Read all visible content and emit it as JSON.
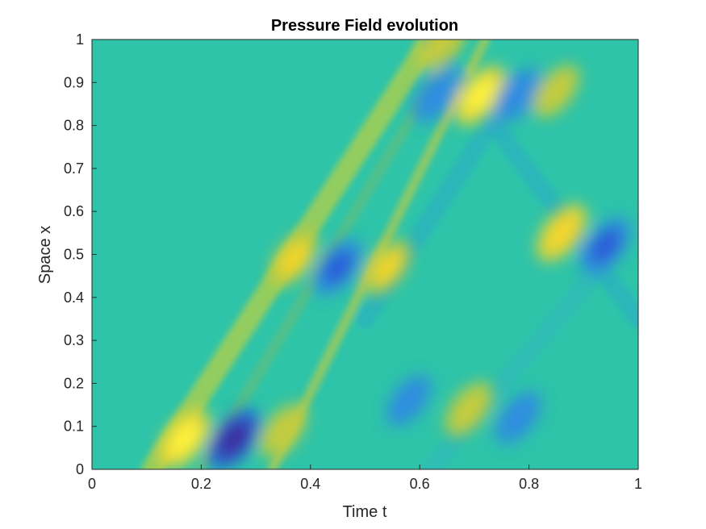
{
  "chart_data": {
    "type": "heatmap",
    "title": "Pressure Field evolution",
    "xlabel": "Time t",
    "ylabel": "Space x",
    "xlim": [
      0,
      1
    ],
    "ylim": [
      0,
      1
    ],
    "xticks": [
      "0",
      "0.2",
      "0.4",
      "0.6",
      "0.8",
      "1"
    ],
    "yticks": [
      "0",
      "0.1",
      "0.2",
      "0.3",
      "0.4",
      "0.5",
      "0.6",
      "0.7",
      "0.8",
      "0.9",
      "1"
    ],
    "grid": false,
    "colormap": "parula",
    "background_value_color": "#2ec4a9",
    "features": [
      {
        "kind": "positive",
        "t": 0.17,
        "x": 0.07,
        "intensity": 0.95
      },
      {
        "kind": "negative",
        "t": 0.26,
        "x": 0.07,
        "intensity": 1.0
      },
      {
        "kind": "positive",
        "t": 0.35,
        "x": 0.09,
        "intensity": 0.6
      },
      {
        "kind": "positive",
        "t": 0.37,
        "x": 0.49,
        "intensity": 0.65
      },
      {
        "kind": "negative",
        "t": 0.45,
        "x": 0.47,
        "intensity": 0.75
      },
      {
        "kind": "positive",
        "t": 0.54,
        "x": 0.47,
        "intensity": 0.65
      },
      {
        "kind": "negative",
        "t": 0.63,
        "x": 0.87,
        "intensity": 0.6
      },
      {
        "kind": "positive",
        "t": 0.71,
        "x": 0.87,
        "intensity": 0.95
      },
      {
        "kind": "negative",
        "t": 0.78,
        "x": 0.87,
        "intensity": 0.6
      },
      {
        "kind": "positive",
        "t": 0.85,
        "x": 0.88,
        "intensity": 0.5
      },
      {
        "kind": "positive",
        "t": 0.86,
        "x": 0.55,
        "intensity": 0.8
      },
      {
        "kind": "negative",
        "t": 0.94,
        "x": 0.52,
        "intensity": 0.85
      },
      {
        "kind": "positive",
        "t": 0.69,
        "x": 0.14,
        "intensity": 0.6
      },
      {
        "kind": "negative",
        "t": 0.78,
        "x": 0.12,
        "intensity": 0.5
      },
      {
        "kind": "negative",
        "t": 0.58,
        "x": 0.16,
        "intensity": 0.4
      },
      {
        "kind": "positive",
        "t": 0.64,
        "x": 0.99,
        "intensity": 0.6
      }
    ]
  }
}
